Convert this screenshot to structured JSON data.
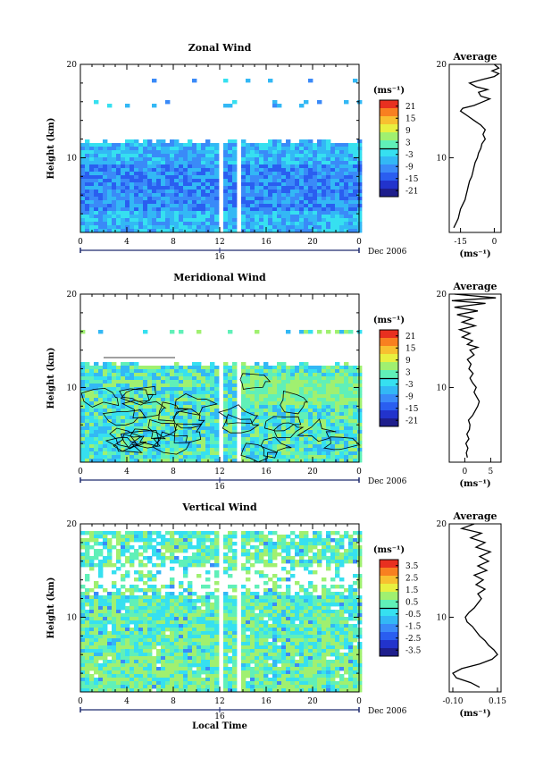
{
  "chart_data": [
    {
      "type": "heatmap",
      "title": "Zonal Wind",
      "ylabel": "Height (km)",
      "ylim": [
        2,
        20
      ],
      "xlim": [
        0,
        24
      ],
      "x_ticks": [
        "0",
        "4",
        "8",
        "12",
        "16",
        "20",
        "0"
      ],
      "y_ticks": [
        "10",
        "20"
      ],
      "date_tick": "16",
      "date_label": "Dec 2006",
      "colorbar": {
        "unit": "(ms⁻¹)",
        "ticks": [
          "21",
          "15",
          "9",
          "3",
          "-3",
          "-9",
          "-15",
          "-21"
        ],
        "range": [
          -24,
          24
        ]
      },
      "data_gaps_hours": [
        [
          11.8,
          12.2
        ],
        [
          13.1,
          13.5
        ]
      ],
      "average_profile": {
        "title": "Average",
        "xlabel": "(ms⁻¹)",
        "xlim": [
          -20,
          3
        ],
        "x_ticks": [
          "-15",
          "0"
        ],
        "y_ticks": [
          "10",
          "20"
        ],
        "points": [
          [
            -18,
            2.5
          ],
          [
            -17,
            3.0
          ],
          [
            -16,
            3.5
          ],
          [
            -15.5,
            4.0
          ],
          [
            -15,
            4.5
          ],
          [
            -14,
            5.0
          ],
          [
            -13,
            5.5
          ],
          [
            -12.5,
            6.0
          ],
          [
            -12,
            6.5
          ],
          [
            -11.5,
            7.0
          ],
          [
            -11,
            7.5
          ],
          [
            -10,
            8.0
          ],
          [
            -9.5,
            8.5
          ],
          [
            -9,
            9.0
          ],
          [
            -8.5,
            9.5
          ],
          [
            -7.5,
            10.0
          ],
          [
            -7,
            10.5
          ],
          [
            -6,
            11.0
          ],
          [
            -5.5,
            11.5
          ],
          [
            -4,
            12.0
          ],
          [
            -5,
            12.5
          ],
          [
            -4,
            13.0
          ],
          [
            -6,
            13.5
          ],
          [
            -9,
            14.0
          ],
          [
            -12,
            14.5
          ],
          [
            -15,
            15.0
          ],
          [
            -14,
            15.3
          ],
          [
            -9,
            15.6
          ],
          [
            -5,
            16.0
          ],
          [
            -2,
            16.3
          ],
          [
            -6,
            16.6
          ],
          [
            -7,
            17.0
          ],
          [
            -3,
            17.3
          ],
          [
            -8,
            17.6
          ],
          [
            -11,
            18.0
          ],
          [
            -5,
            18.4
          ],
          [
            0,
            18.7
          ],
          [
            2,
            19.0
          ],
          [
            -1,
            19.3
          ],
          [
            2,
            19.6
          ],
          [
            0,
            20.0
          ]
        ]
      }
    },
    {
      "type": "heatmap",
      "title": "Meridional Wind",
      "ylabel": "Height (km)",
      "ylim": [
        2,
        20
      ],
      "xlim": [
        0,
        24
      ],
      "x_ticks": [
        "0",
        "4",
        "8",
        "12",
        "16",
        "20",
        "0"
      ],
      "y_ticks": [
        "10",
        "20"
      ],
      "date_tick": "16",
      "date_label": "Dec 2006",
      "colorbar": {
        "unit": "(ms⁻¹)",
        "ticks": [
          "21",
          "15",
          "9",
          "3",
          "-3",
          "-9",
          "-15",
          "-21"
        ],
        "range": [
          -24,
          24
        ]
      },
      "data_gaps_hours": [
        [
          11.8,
          12.2
        ],
        [
          13.1,
          13.5
        ]
      ],
      "average_profile": {
        "title": "Average",
        "xlabel": "(ms⁻¹)",
        "xlim": [
          -3,
          7
        ],
        "x_ticks": [
          "0",
          "5"
        ],
        "y_ticks": [
          "10",
          "20"
        ],
        "points": [
          [
            0.5,
            2.5
          ],
          [
            0.3,
            3.0
          ],
          [
            0.6,
            3.5
          ],
          [
            0.2,
            4.0
          ],
          [
            0.8,
            4.5
          ],
          [
            0.4,
            5.0
          ],
          [
            0.9,
            5.5
          ],
          [
            1.0,
            6.0
          ],
          [
            0.7,
            6.5
          ],
          [
            1.5,
            7.0
          ],
          [
            2.0,
            7.5
          ],
          [
            2.5,
            8.0
          ],
          [
            2.8,
            8.5
          ],
          [
            2.3,
            9.0
          ],
          [
            1.8,
            9.5
          ],
          [
            2.2,
            10.0
          ],
          [
            1.5,
            10.5
          ],
          [
            1.0,
            11.0
          ],
          [
            1.6,
            11.5
          ],
          [
            0.8,
            12.0
          ],
          [
            1.2,
            12.5
          ],
          [
            0.5,
            13.0
          ],
          [
            1.8,
            13.5
          ],
          [
            1.0,
            14.0
          ],
          [
            2.5,
            14.3
          ],
          [
            0.5,
            14.6
          ],
          [
            1.5,
            15.0
          ],
          [
            -0.5,
            15.4
          ],
          [
            1.0,
            15.8
          ],
          [
            -1.0,
            16.2
          ],
          [
            2.0,
            16.6
          ],
          [
            -0.5,
            17.0
          ],
          [
            1.5,
            17.4
          ],
          [
            -1.5,
            17.8
          ],
          [
            2.5,
            18.2
          ],
          [
            -2.0,
            18.6
          ],
          [
            4.0,
            19.0
          ],
          [
            -2.5,
            19.3
          ],
          [
            6.0,
            19.6
          ],
          [
            -2.0,
            20.0
          ]
        ]
      }
    },
    {
      "type": "heatmap",
      "title": "Vertical Wind",
      "ylabel": "Height (km)",
      "xlabel": "Local Time",
      "ylim": [
        2,
        20
      ],
      "xlim": [
        0,
        24
      ],
      "x_ticks": [
        "0",
        "4",
        "8",
        "12",
        "16",
        "20",
        "0"
      ],
      "y_ticks": [
        "10",
        "20"
      ],
      "date_tick": "16",
      "date_label": "Dec 2006",
      "colorbar": {
        "unit": "(ms⁻¹)",
        "ticks": [
          "3.5",
          "2.5",
          "1.5",
          "0.5",
          "-0.5",
          "-1.5",
          "-2.5",
          "-3.5"
        ],
        "range": [
          -4,
          4
        ]
      },
      "data_gaps_hours": [
        [
          11.8,
          12.2
        ],
        [
          13.1,
          13.5
        ]
      ],
      "average_profile": {
        "title": "Average",
        "xlabel": "(ms⁻¹)",
        "xlim": [
          -0.12,
          0.17
        ],
        "x_ticks": [
          "-0.10",
          "0.15"
        ],
        "y_ticks": [
          "10",
          "20"
        ],
        "points": [
          [
            0.05,
            2.5
          ],
          [
            0.0,
            3.0
          ],
          [
            -0.08,
            3.5
          ],
          [
            -0.1,
            4.0
          ],
          [
            -0.05,
            4.5
          ],
          [
            0.05,
            5.0
          ],
          [
            0.12,
            5.5
          ],
          [
            0.15,
            6.0
          ],
          [
            0.13,
            6.5
          ],
          [
            0.1,
            7.0
          ],
          [
            0.08,
            7.5
          ],
          [
            0.05,
            8.0
          ],
          [
            0.03,
            8.5
          ],
          [
            0.01,
            9.0
          ],
          [
            -0.02,
            9.5
          ],
          [
            -0.03,
            10.0
          ],
          [
            -0.01,
            10.5
          ],
          [
            0.02,
            11.0
          ],
          [
            0.04,
            11.5
          ],
          [
            0.06,
            12.0
          ],
          [
            0.04,
            12.5
          ],
          [
            0.08,
            13.0
          ],
          [
            0.03,
            13.5
          ],
          [
            0.07,
            14.0
          ],
          [
            0.02,
            14.5
          ],
          [
            0.09,
            15.0
          ],
          [
            0.04,
            15.5
          ],
          [
            0.1,
            16.0
          ],
          [
            0.05,
            16.5
          ],
          [
            0.11,
            17.0
          ],
          [
            0.03,
            17.5
          ],
          [
            0.08,
            18.0
          ],
          [
            0.0,
            18.5
          ],
          [
            0.06,
            19.0
          ],
          [
            -0.05,
            19.5
          ],
          [
            0.02,
            20.0
          ]
        ]
      }
    }
  ]
}
